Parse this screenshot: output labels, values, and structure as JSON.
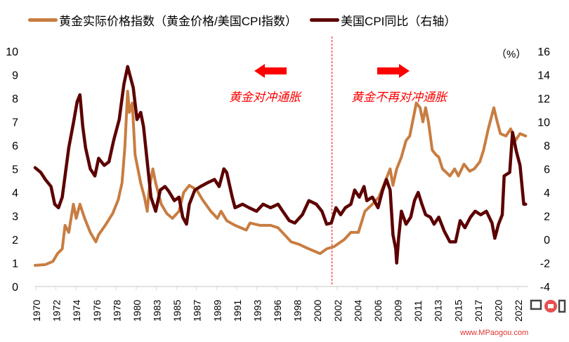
{
  "chart_data": {
    "type": "line",
    "title": "",
    "legend": [
      {
        "name": "黄金实际价格指数（黄金价格/美国CPI指数）",
        "color": "#c87d41"
      },
      {
        "name": "美国CPI同比（右轴）",
        "color": "#5c0000"
      }
    ],
    "legend_placement": "top",
    "x_tick_labels": [
      "1970",
      "1972",
      "1974",
      "1976",
      "1978",
      "1980",
      "1983",
      "1985",
      "1987",
      "1989",
      "1991",
      "1993",
      "1996",
      "1998",
      "2000",
      "2002",
      "2004",
      "2006",
      "2009",
      "2011",
      "2013",
      "2015",
      "2017",
      "2020",
      "2022"
    ],
    "y_left": {
      "ticks": [
        0,
        1,
        2,
        3,
        4,
        5,
        6,
        7,
        8,
        9,
        10
      ],
      "range": [
        0,
        10
      ]
    },
    "y_right": {
      "ticks": [
        -4,
        -2,
        0,
        2,
        4,
        6,
        8,
        10,
        12,
        14,
        16
      ],
      "range": [
        -4,
        16
      ],
      "unit_label": "（%）"
    },
    "grid": false,
    "series": [
      {
        "name": "黄金实际价格指数（黄金价格/美国CPI指数）",
        "axis": "left",
        "color": "#c87d41",
        "x": [
          1970,
          1971.1,
          1971.9,
          1972.4,
          1972.9,
          1973.2,
          1973.6,
          1974.1,
          1974.4,
          1974.8,
          1975.3,
          1975.9,
          1976.5,
          1976.8,
          1977.5,
          1978.3,
          1978.9,
          1979.3,
          1979.6,
          1979.9,
          1980.1,
          1980.4,
          1980.7,
          1981.0,
          1981.3,
          1981.7,
          1982.0,
          1982.2,
          1982.6,
          1982.9,
          1983.5,
          1984.1,
          1984.7,
          1985.4,
          1985.9,
          1986.5,
          1987.3,
          1987.9,
          1988.8,
          1989.5,
          1989.9,
          1990.5,
          1991.4,
          1992.6,
          1993.0,
          1994.1,
          1995.2,
          1996.0,
          1996.7,
          1997.4,
          1998.2,
          1999.3,
          2000.5,
          2001.2,
          2002.0,
          2003.1,
          2003.8,
          2004.6,
          2005.3,
          2006.1,
          2006.8,
          2007.4,
          2008.0,
          2008.3,
          2008.7,
          2009.2,
          2009.7,
          2010.1,
          2010.6,
          2010.8,
          2011.2,
          2011.5,
          2011.8,
          2012.1,
          2012.5,
          2012.9,
          2013.2,
          2013.6,
          2014.4,
          2014.9,
          2015.3,
          2015.9,
          2016.5,
          2017.0,
          2017.6,
          2018.0,
          2018.5,
          2019.1,
          2019.4,
          2019.8,
          2020.4,
          2020.9,
          2021.4,
          2021.9,
          2022.5
        ],
        "y": [
          0.9,
          0.93,
          1.07,
          1.4,
          1.6,
          2.6,
          2.3,
          3.5,
          2.9,
          3.5,
          2.9,
          2.3,
          1.9,
          2.2,
          2.6,
          3.1,
          3.7,
          4.4,
          5.9,
          8.3,
          7.4,
          7.8,
          5.6,
          5.0,
          4.4,
          3.8,
          3.2,
          4.1,
          5.0,
          4.4,
          3.5,
          3.1,
          2.9,
          3.2,
          4.0,
          4.3,
          4.1,
          3.7,
          3.2,
          2.9,
          3.2,
          2.8,
          2.6,
          2.4,
          2.7,
          2.6,
          2.6,
          2.5,
          2.2,
          1.9,
          1.8,
          1.6,
          1.4,
          1.6,
          1.7,
          2.0,
          2.3,
          2.3,
          3.2,
          3.5,
          3.8,
          4.4,
          5.0,
          4.3,
          5.0,
          5.5,
          6.2,
          6.4,
          7.4,
          7.8,
          7.6,
          7.0,
          7.6,
          7.0,
          5.8,
          5.6,
          5.5,
          5.0,
          4.7,
          5.0,
          4.7,
          5.2,
          4.9,
          5.0,
          5.3,
          5.8,
          6.7,
          7.6,
          7.1,
          6.5,
          6.4,
          6.7,
          6.2,
          6.5,
          6.4
        ]
      },
      {
        "name": "美国CPI同比（右轴）",
        "axis": "right",
        "color": "#5c0000",
        "x": [
          1970,
          1970.6,
          1971.1,
          1971.7,
          1972.1,
          1972.5,
          1972.9,
          1973.2,
          1973.6,
          1974.1,
          1974.5,
          1974.8,
          1975.1,
          1975.4,
          1975.9,
          1976.4,
          1976.8,
          1977.4,
          1977.9,
          1978.4,
          1979.0,
          1979.5,
          1979.9,
          1980.2,
          1980.5,
          1980.9,
          1981.3,
          1981.6,
          1982.0,
          1982.4,
          1982.9,
          1983.4,
          1983.9,
          1984.3,
          1984.9,
          1985.4,
          1985.8,
          1986.2,
          1986.5,
          1987.1,
          1987.7,
          1988.4,
          1989.2,
          1989.7,
          1990.2,
          1990.5,
          1991.1,
          1991.4,
          1992.2,
          1992.9,
          1993.7,
          1994.4,
          1995.2,
          1996.0,
          1996.5,
          1997.2,
          1997.8,
          1998.6,
          1999.3,
          2000.1,
          2000.7,
          2001.2,
          2001.7,
          2002.2,
          2002.7,
          2003.2,
          2003.8,
          2004.2,
          2004.7,
          2005.2,
          2005.5,
          2006.1,
          2006.7,
          2007.2,
          2007.6,
          2008.0,
          2008.3,
          2008.6,
          2008.7,
          2008.9,
          2009.2,
          2009.7,
          2010.2,
          2010.6,
          2011.0,
          2011.4,
          2011.8,
          2012.3,
          2012.7,
          2013.2,
          2013.8,
          2014.4,
          2015.0,
          2015.5,
          2016.0,
          2016.6,
          2017.1,
          2017.7,
          2018.3,
          2018.9,
          2019.2,
          2019.6,
          2020.0,
          2020.2,
          2020.8,
          2021.1,
          2021.5,
          2021.9,
          2022.3,
          2022.5
        ],
        "y": [
          6.1,
          5.7,
          5.1,
          4.5,
          3.0,
          2.7,
          3.6,
          5.4,
          7.8,
          9.9,
          11.7,
          12.3,
          9.6,
          7.8,
          6.0,
          5.4,
          6.9,
          6.3,
          6.6,
          8.4,
          10.2,
          13.2,
          14.7,
          13.8,
          12.9,
          10.2,
          10.8,
          9.6,
          6.6,
          3.6,
          2.4,
          4.2,
          4.5,
          4.1,
          3.3,
          3.6,
          1.9,
          1.3,
          3.0,
          4.2,
          4.5,
          4.8,
          5.1,
          4.5,
          6.0,
          5.7,
          3.6,
          2.7,
          3.0,
          2.7,
          2.4,
          3.0,
          2.7,
          3.0,
          2.4,
          1.6,
          1.4,
          2.1,
          3.3,
          3.0,
          2.4,
          1.3,
          1.4,
          2.7,
          2.1,
          2.7,
          3.0,
          4.2,
          3.6,
          4.5,
          3.3,
          3.6,
          2.7,
          4.2,
          5.1,
          4.2,
          0.4,
          -0.8,
          -2.0,
          0.1,
          2.4,
          1.3,
          1.9,
          3.3,
          4.0,
          3.0,
          2.1,
          1.9,
          1.3,
          1.9,
          0.7,
          -0.2,
          -0.2,
          1.6,
          1.0,
          1.9,
          2.4,
          2.1,
          2.4,
          1.4,
          0.1,
          1.3,
          2.1,
          5.4,
          5.7,
          9.1,
          7.5,
          6.3,
          3.0,
          3.0
        ]
      }
    ],
    "annotations": {
      "divider_year": 2002,
      "left_text": "黄金对冲通胀",
      "right_text": "黄金不再对冲通胀",
      "arrow_color": "#ff0000"
    },
    "watermark": {
      "logo": "百品购",
      "url": "www.MPaogou.com"
    }
  }
}
